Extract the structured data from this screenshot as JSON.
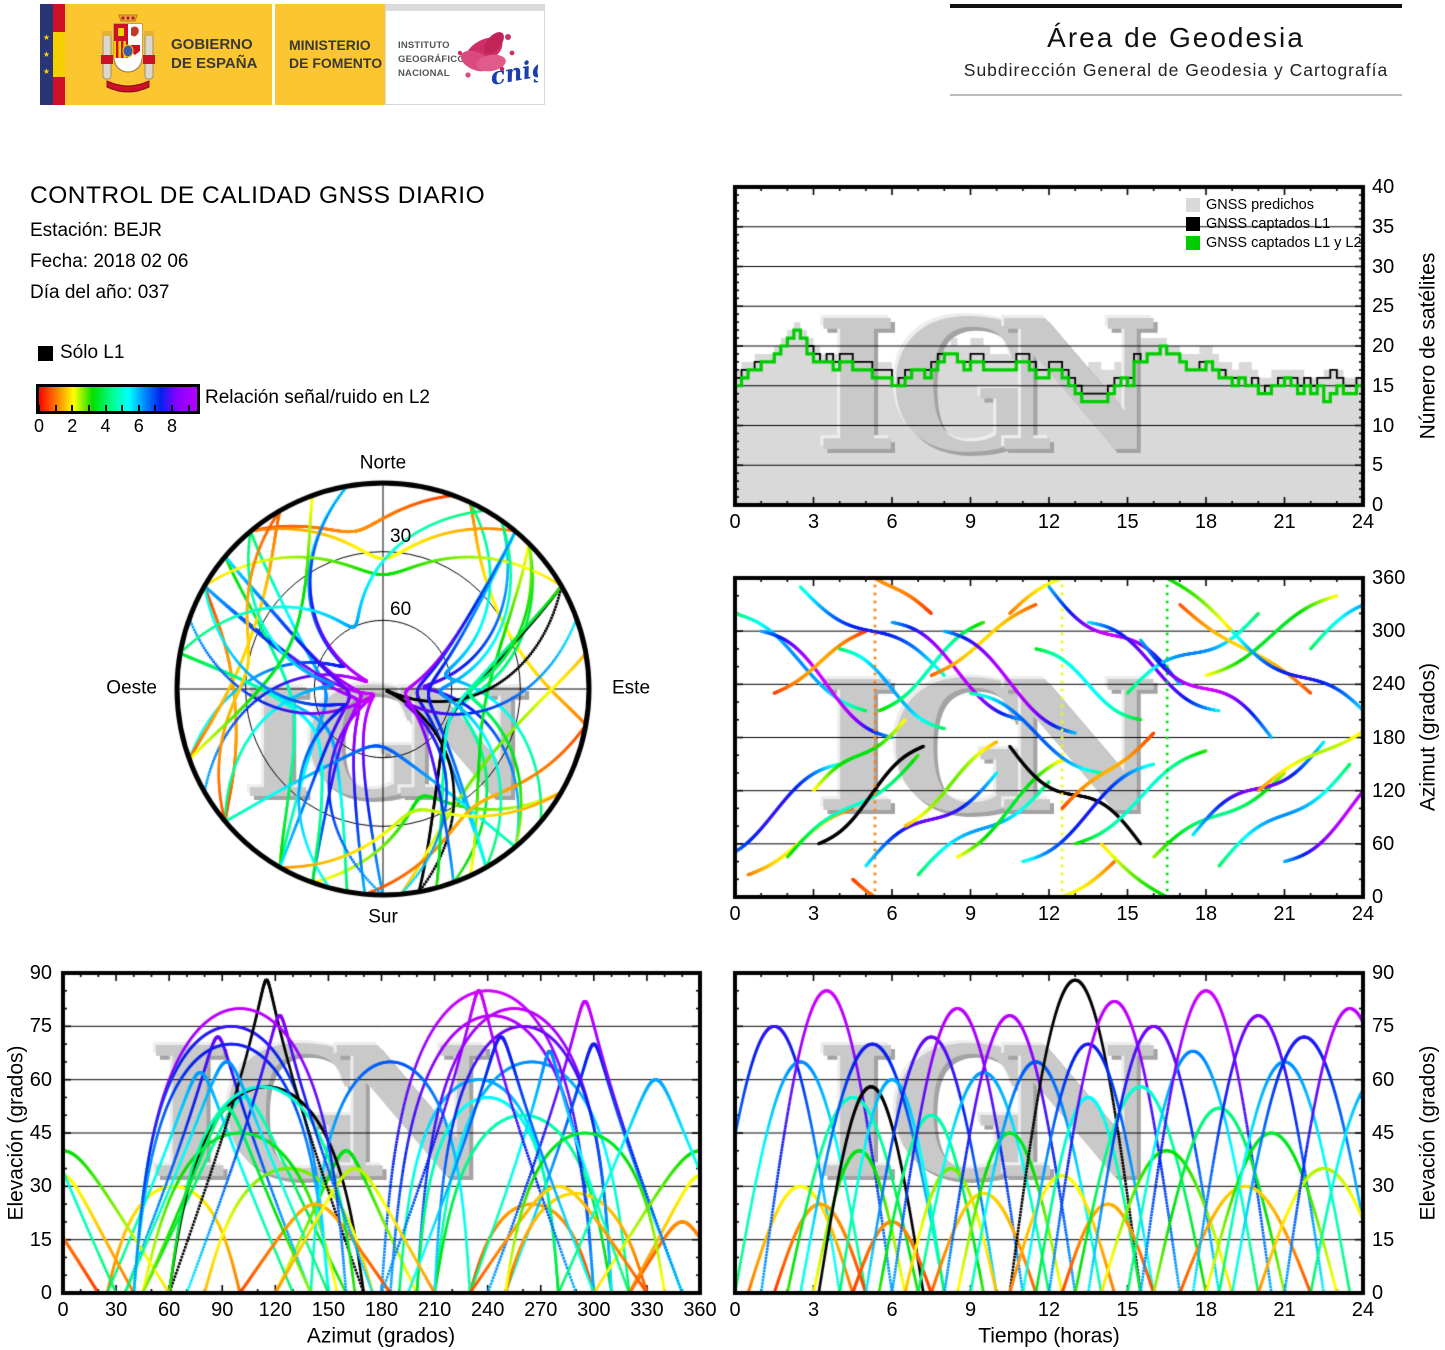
{
  "header": {
    "gobierno_line1": "GOBIERNO",
    "gobierno_line2": "DE ESPAÑA",
    "ministerio_line1": "MINISTERIO",
    "ministerio_line2": "DE FOMENTO",
    "instituto_line1": "INSTITUTO",
    "instituto_line2": "GEOGRÁFICO",
    "instituto_line3": "NACIONAL",
    "cnig": "cnig",
    "area_title": "Área de Geodesia",
    "area_subtitle": "Subdirección General de Geodesia y Cartografía"
  },
  "info": {
    "title": "CONTROL DE CALIDAD GNSS DIARIO",
    "station": "Estación: BEJR",
    "date": "Fecha: 2018 02 06",
    "doy": "Día del año: 037"
  },
  "snr_legend": {
    "solo_l1": "Sólo L1",
    "colorbar_label": "Relación señal/ruido en L2",
    "colorbar_ticks": [
      "0",
      "2",
      "4",
      "6",
      "8"
    ],
    "colorbar_tick_values": [
      0,
      2,
      4,
      6,
      8
    ],
    "colorbar_minor_values": [
      0,
      1,
      2,
      3,
      4,
      5,
      6,
      7,
      8,
      9
    ],
    "colorbar_range": [
      0,
      9.5
    ]
  },
  "watermark": "IGN",
  "chart_data": {
    "colormap": [
      [
        0.0,
        "#ff0000"
      ],
      [
        0.12,
        "#ff8800"
      ],
      [
        0.22,
        "#ffff00"
      ],
      [
        0.34,
        "#00e000"
      ],
      [
        0.47,
        "#00ff99"
      ],
      [
        0.57,
        "#00ffff"
      ],
      [
        0.67,
        "#0088ff"
      ],
      [
        0.77,
        "#0022ee"
      ],
      [
        0.87,
        "#8800ff"
      ],
      [
        1.0,
        "#ff00ff"
      ]
    ],
    "charts": [
      {
        "id": "satellites",
        "type": "area",
        "ylabel": "Número de satélites",
        "xlim": [
          0,
          24
        ],
        "ylim": [
          0,
          40
        ],
        "xticks": [
          "0",
          "3",
          "6",
          "9",
          "12",
          "15",
          "18",
          "21",
          "24"
        ],
        "yticks": [
          "0",
          "5",
          "10",
          "15",
          "20",
          "25",
          "30",
          "35",
          "40"
        ],
        "grid_y": [
          5,
          10,
          15,
          20,
          25,
          30,
          35
        ],
        "legend": [
          {
            "label": "GNSS predichos",
            "color": "#d9d9d9"
          },
          {
            "label": "GNSS captados L1",
            "color": "#000000"
          },
          {
            "label": "GNSS captados L1 y L2",
            "color": "#00cc00"
          }
        ],
        "t_step_hours": 0.25,
        "predichos": [
          17,
          18,
          18,
          19,
          19,
          19,
          20,
          21,
          22,
          23,
          22,
          21,
          20,
          19,
          19,
          19,
          20,
          20,
          19,
          19,
          19,
          18,
          18,
          18,
          17,
          17,
          18,
          18,
          18,
          18,
          19,
          20,
          20,
          21,
          20,
          20,
          21,
          21,
          20,
          19,
          19,
          19,
          19,
          20,
          20,
          19,
          19,
          18,
          19,
          19,
          18,
          17,
          17,
          17,
          18,
          18,
          17,
          17,
          18,
          18,
          19,
          20,
          21,
          21,
          21,
          21,
          20,
          20,
          19,
          19,
          19,
          20,
          20,
          19,
          18,
          18,
          17,
          18,
          18,
          17,
          16,
          16,
          17,
          17,
          17,
          17,
          17,
          16,
          16,
          16,
          17,
          17,
          17,
          16,
          16,
          16,
          16
        ],
        "captados_l1": [
          16,
          17,
          17,
          18,
          18,
          18,
          19,
          20,
          21,
          22,
          21,
          20,
          19,
          18,
          19,
          18,
          19,
          19,
          18,
          18,
          18,
          17,
          17,
          17,
          15,
          16,
          17,
          17,
          17,
          17,
          18,
          19,
          19,
          19,
          18,
          18,
          19,
          19,
          18,
          18,
          18,
          18,
          18,
          19,
          19,
          18,
          17,
          17,
          18,
          18,
          17,
          16,
          15,
          14,
          14,
          14,
          14,
          15,
          16,
          16,
          16,
          19,
          18,
          19,
          19,
          20,
          19,
          19,
          18,
          17,
          17,
          18,
          18,
          17,
          17,
          16,
          16,
          16,
          15,
          16,
          14,
          15,
          15,
          16,
          16,
          16,
          15,
          16,
          15,
          16,
          16,
          17,
          16,
          15,
          15,
          16,
          15
        ],
        "captados_l1_l2": [
          15,
          16,
          17,
          17,
          18,
          18,
          19,
          20,
          21,
          22,
          21,
          19,
          18,
          18,
          18,
          17,
          18,
          18,
          17,
          17,
          17,
          16,
          16,
          16,
          15,
          15,
          16,
          17,
          17,
          16,
          17,
          18,
          19,
          19,
          18,
          17,
          18,
          18,
          17,
          17,
          17,
          17,
          17,
          18,
          18,
          17,
          16,
          16,
          17,
          17,
          16,
          15,
          14,
          13,
          13,
          13,
          13,
          14,
          15,
          16,
          15,
          18,
          18,
          19,
          19,
          20,
          19,
          19,
          18,
          17,
          17,
          17,
          18,
          17,
          16,
          16,
          15,
          16,
          15,
          15,
          14,
          14,
          15,
          15,
          16,
          15,
          14,
          15,
          14,
          15,
          13,
          14,
          15,
          14,
          14,
          15,
          15
        ]
      },
      {
        "id": "azimut_vs_tiempo",
        "type": "scatter-tracks",
        "ylabel": "Azimut (grados)",
        "xlim": [
          0,
          24
        ],
        "ylim": [
          0,
          360
        ],
        "xticks": [
          "0",
          "3",
          "6",
          "9",
          "12",
          "15",
          "18",
          "21",
          "24"
        ],
        "yticks": [
          "0",
          "60",
          "120",
          "180",
          "240",
          "300",
          "360"
        ],
        "grid_y": [
          60,
          120,
          180,
          240,
          300
        ]
      },
      {
        "id": "elevacion_vs_azimut",
        "type": "scatter-tracks",
        "xlabel": "Azimut (grados)",
        "ylabel": "Elevación (grados)",
        "xlim": [
          0,
          360
        ],
        "ylim": [
          0,
          90
        ],
        "xticks": [
          "0",
          "30",
          "60",
          "90",
          "120",
          "150",
          "180",
          "210",
          "240",
          "270",
          "300",
          "330",
          "360"
        ],
        "yticks": [
          "0",
          "15",
          "30",
          "45",
          "60",
          "75",
          "90"
        ],
        "grid_y": [
          15,
          30,
          45,
          60,
          75
        ]
      },
      {
        "id": "elevacion_vs_tiempo",
        "type": "scatter-tracks",
        "xlabel": "Tiempo (horas)",
        "ylabel": "Elevación (grados)",
        "xlim": [
          0,
          24
        ],
        "ylim": [
          0,
          90
        ],
        "xticks": [
          "0",
          "3",
          "6",
          "9",
          "12",
          "15",
          "18",
          "21",
          "24"
        ],
        "yticks": [
          "0",
          "15",
          "30",
          "45",
          "60",
          "75",
          "90"
        ],
        "grid_y": [
          15,
          30,
          45,
          60,
          75
        ]
      },
      {
        "id": "skyplot",
        "type": "polar-tracks",
        "labels": {
          "north": "Norte",
          "south": "Sur",
          "east": "Este",
          "west": "Oeste"
        },
        "ring_labels": [
          "30",
          "60"
        ],
        "ring_elevations": [
          30,
          60
        ]
      }
    ],
    "tracks": [
      {
        "t0": -1,
        "t1": 4,
        "a0": 40,
        "a1": 150,
        "el": 75,
        "c": 5
      },
      {
        "t0": 0,
        "t1": 5,
        "a0": 320,
        "a1": 210,
        "el": 65,
        "c": 4
      },
      {
        "t0": 0.5,
        "t1": 4.5,
        "a0": 25,
        "a1": 100,
        "el": 30,
        "c": 1
      },
      {
        "t0": 1,
        "t1": 6,
        "a0": 300,
        "a1": 180,
        "el": 85,
        "c": 6
      },
      {
        "t0": 1.5,
        "t1": 5,
        "a0": 230,
        "a1": 300,
        "el": 25,
        "c": 0.5
      },
      {
        "t0": 2,
        "t1": 7,
        "a0": 45,
        "a1": 160,
        "el": 55,
        "c": 3
      },
      {
        "t0": 2.5,
        "t1": 8,
        "a0": 350,
        "a1": 250,
        "el": 70,
        "c": 5
      },
      {
        "t0": 3,
        "t1": 6.5,
        "a0": 120,
        "a1": 200,
        "el": 40,
        "c": 2
      },
      {
        "t0": 3.2,
        "t1": 7.2,
        "a0": 60,
        "a1": 170,
        "el": 58,
        "c": 0,
        "k": 1
      },
      {
        "t0": 4,
        "t1": 8,
        "a0": 280,
        "a1": 190,
        "el": 60,
        "c": 4
      },
      {
        "t0": 4.5,
        "t1": 7.5,
        "a0": 20,
        "a1": -40,
        "el": 20,
        "c": 0.5
      },
      {
        "t0": 5,
        "t1": 10,
        "a0": 35,
        "a1": 140,
        "el": 72,
        "c": 5.5
      },
      {
        "t0": 5.5,
        "t1": 9.5,
        "a0": 210,
        "a1": 310,
        "el": 50,
        "c": 3
      },
      {
        "t0": 6,
        "t1": 11,
        "a0": 310,
        "a1": 200,
        "el": 80,
        "c": 6
      },
      {
        "t0": 6.5,
        "t1": 10,
        "a0": 80,
        "a1": 175,
        "el": 35,
        "c": 1.5
      },
      {
        "t0": 7,
        "t1": 12,
        "a0": 25,
        "a1": 130,
        "el": 62,
        "c": 4
      },
      {
        "t0": 7.5,
        "t1": 11.5,
        "a0": 250,
        "a1": 330,
        "el": 28,
        "c": 0.8
      },
      {
        "t0": 8,
        "t1": 13,
        "a0": 300,
        "a1": 185,
        "el": 78,
        "c": 6
      },
      {
        "t0": 8.5,
        "t1": 12.5,
        "a0": 45,
        "a1": 155,
        "el": 45,
        "c": 2
      },
      {
        "t0": 9,
        "t1": 14,
        "a0": 230,
        "a1": 140,
        "el": 65,
        "c": 4.5
      },
      {
        "t0": 10.5,
        "t1": 15.5,
        "a0": 170,
        "a1": 60,
        "el": 88,
        "c": 0,
        "k": 1
      },
      {
        "t0": 10.5,
        "t1": 14.5,
        "a0": 320,
        "a1": 400,
        "el": 33,
        "c": 1
      },
      {
        "t0": 11,
        "t1": 16,
        "a0": 40,
        "a1": 150,
        "el": 70,
        "c": 5
      },
      {
        "t0": 11.5,
        "t1": 15.5,
        "a0": 280,
        "a1": 200,
        "el": 55,
        "c": 3.5
      },
      {
        "t0": 12,
        "t1": 17,
        "a0": 350,
        "a1": 240,
        "el": 82,
        "c": 6
      },
      {
        "t0": 12.5,
        "t1": 16,
        "a0": 100,
        "a1": 185,
        "el": 25,
        "c": 0.6
      },
      {
        "t0": 13,
        "t1": 18,
        "a0": 60,
        "a1": 165,
        "el": 58,
        "c": 3
      },
      {
        "t0": 13.5,
        "t1": 18.5,
        "a0": 310,
        "a1": 210,
        "el": 75,
        "c": 5.5
      },
      {
        "t0": 14,
        "t1": 19,
        "a0": 60,
        "a1": -60,
        "el": 40,
        "c": 1.8
      },
      {
        "t0": 15,
        "t1": 20,
        "a0": 230,
        "a1": 320,
        "el": 68,
        "c": 4
      },
      {
        "t0": 15.5,
        "t1": 20.5,
        "a0": 290,
        "a1": 180,
        "el": 85,
        "c": 6
      },
      {
        "t0": 16,
        "t1": 21,
        "a0": 45,
        "a1": 140,
        "el": 52,
        "c": 2.5
      },
      {
        "t0": 17,
        "t1": 22,
        "a0": 330,
        "a1": 230,
        "el": 30,
        "c": 0.7
      },
      {
        "t0": 17.5,
        "t1": 22.5,
        "a0": 70,
        "a1": 175,
        "el": 78,
        "c": 5.5
      },
      {
        "t0": 18,
        "t1": 23,
        "a0": 250,
        "a1": 340,
        "el": 45,
        "c": 2
      },
      {
        "t0": 18.5,
        "t1": 23.5,
        "a0": 35,
        "a1": 150,
        "el": 65,
        "c": 4
      },
      {
        "t0": 19,
        "t1": 24.5,
        "a0": 300,
        "a1": 195,
        "el": 72,
        "c": 5
      },
      {
        "t0": 20,
        "t1": 25,
        "a0": 120,
        "a1": 210,
        "el": 35,
        "c": 1.2
      },
      {
        "t0": 21,
        "t1": 26,
        "a0": 40,
        "a1": 160,
        "el": 80,
        "c": 6
      },
      {
        "t0": 22,
        "t1": 27,
        "a0": 280,
        "a1": 390,
        "el": 60,
        "c": 4
      }
    ]
  }
}
